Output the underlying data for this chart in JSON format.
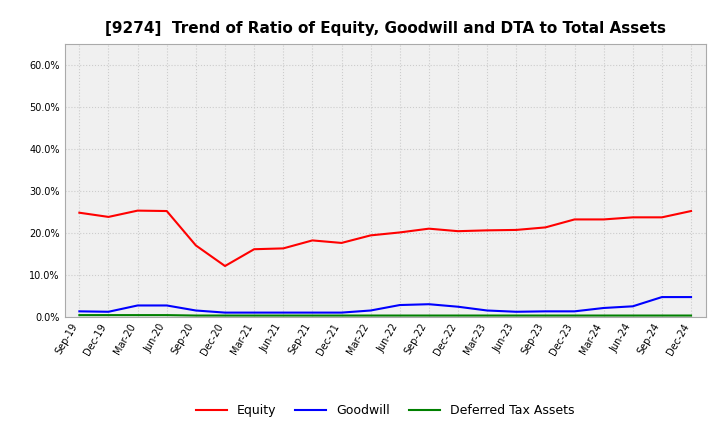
{
  "title": "[9274]  Trend of Ratio of Equity, Goodwill and DTA to Total Assets",
  "x_labels": [
    "Sep-19",
    "Dec-19",
    "Mar-20",
    "Jun-20",
    "Sep-20",
    "Dec-20",
    "Mar-21",
    "Jun-21",
    "Sep-21",
    "Dec-21",
    "Mar-22",
    "Jun-22",
    "Sep-22",
    "Dec-22",
    "Mar-23",
    "Jun-23",
    "Sep-23",
    "Dec-23",
    "Mar-24",
    "Jun-24",
    "Sep-24",
    "Dec-24"
  ],
  "equity": [
    0.248,
    0.238,
    0.253,
    0.252,
    0.17,
    0.121,
    0.161,
    0.163,
    0.182,
    0.176,
    0.194,
    0.201,
    0.21,
    0.204,
    0.206,
    0.207,
    0.213,
    0.232,
    0.232,
    0.237,
    0.237,
    0.252
  ],
  "goodwill": [
    0.013,
    0.012,
    0.027,
    0.027,
    0.015,
    0.01,
    0.01,
    0.01,
    0.01,
    0.01,
    0.015,
    0.028,
    0.03,
    0.024,
    0.015,
    0.012,
    0.013,
    0.013,
    0.021,
    0.025,
    0.047,
    0.047
  ],
  "dta": [
    0.004,
    0.004,
    0.004,
    0.004,
    0.003,
    0.003,
    0.003,
    0.003,
    0.003,
    0.003,
    0.003,
    0.003,
    0.003,
    0.003,
    0.003,
    0.003,
    0.003,
    0.003,
    0.003,
    0.003,
    0.003,
    0.003
  ],
  "equity_color": "#ff0000",
  "goodwill_color": "#0000ff",
  "dta_color": "#008000",
  "ylim": [
    0.0,
    0.65
  ],
  "yticks": [
    0.0,
    0.1,
    0.2,
    0.3,
    0.4,
    0.5,
    0.6
  ],
  "background_color": "#ffffff",
  "plot_bg_color": "#f0f0f0",
  "grid_color": "#cccccc",
  "legend_labels": [
    "Equity",
    "Goodwill",
    "Deferred Tax Assets"
  ],
  "title_fontsize": 11,
  "tick_fontsize": 7,
  "legend_fontsize": 9
}
